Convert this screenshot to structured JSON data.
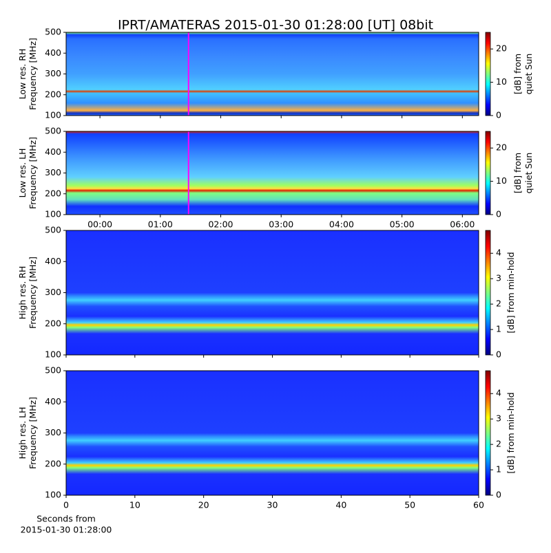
{
  "figure_title": "IPRT/AMATERAS 2015-01-30 01:28:00 [UT]   08bit",
  "chart_data": [
    {
      "type": "spectrogram",
      "ylabel": [
        "Low res. RH",
        "Frequency [MHz]"
      ],
      "xlim": [
        -0.56,
        6.27
      ],
      "xticks": [
        0,
        1,
        2,
        3,
        4,
        5,
        6
      ],
      "show_xtick_labels": false,
      "ylim": [
        100,
        500
      ],
      "yticks": [
        100,
        200,
        300,
        400,
        500
      ],
      "cursor": 1.4667,
      "cursor_color": "#ff00ff",
      "colorbar_label": [
        "[dB] from",
        "quiet Sun"
      ],
      "clim": [
        0,
        25
      ],
      "cticks": [
        0,
        10,
        20
      ]
    },
    {
      "type": "spectrogram",
      "ylabel": [
        "Low res. LH",
        "Frequency [MHz]"
      ],
      "xlim": [
        -0.56,
        6.27
      ],
      "xticks": [
        {
          "value": 0,
          "label": "00:00"
        },
        {
          "value": 1,
          "label": "01:00"
        },
        {
          "value": 2,
          "label": "02:00"
        },
        {
          "value": 3,
          "label": "03:00"
        },
        {
          "value": 4,
          "label": "04:00"
        },
        {
          "value": 5,
          "label": "05:00"
        },
        {
          "value": 6,
          "label": "06:00"
        }
      ],
      "show_xtick_labels": true,
      "ylim": [
        100,
        500
      ],
      "yticks": [
        100,
        200,
        300,
        400,
        500
      ],
      "cursor": 1.4667,
      "cursor_color": "#ff00ff",
      "colorbar_label": [
        "[dB] from",
        "quiet Sun"
      ],
      "clim": [
        0,
        25
      ],
      "cticks": [
        0,
        10,
        20
      ]
    },
    {
      "type": "spectrogram",
      "ylabel": [
        "High res. RH",
        "Frequency [MHz]"
      ],
      "xlim": [
        0,
        60
      ],
      "xticks": [
        0,
        10,
        20,
        30,
        40,
        50,
        60
      ],
      "show_xtick_labels": false,
      "ylim": [
        100,
        500
      ],
      "yticks": [
        100,
        200,
        300,
        400,
        500
      ],
      "colorbar_label": [
        "[dB] from min-hold"
      ],
      "clim": [
        0,
        4.9
      ],
      "cticks": [
        0,
        1,
        2,
        3,
        4
      ]
    },
    {
      "type": "spectrogram",
      "ylabel": [
        "High res. LH",
        "Frequency [MHz]"
      ],
      "xlabel": [
        "Seconds from",
        "2015-01-30 01:28:00"
      ],
      "xlim": [
        0,
        60
      ],
      "xticks": [
        0,
        10,
        20,
        30,
        40,
        50,
        60
      ],
      "show_xtick_labels": true,
      "ylim": [
        100,
        500
      ],
      "yticks": [
        100,
        200,
        300,
        400,
        500
      ],
      "colorbar_label": [
        "[dB] from min-hold"
      ],
      "clim": [
        0,
        4.9
      ],
      "cticks": [
        0,
        1,
        2,
        3,
        4
      ]
    }
  ]
}
